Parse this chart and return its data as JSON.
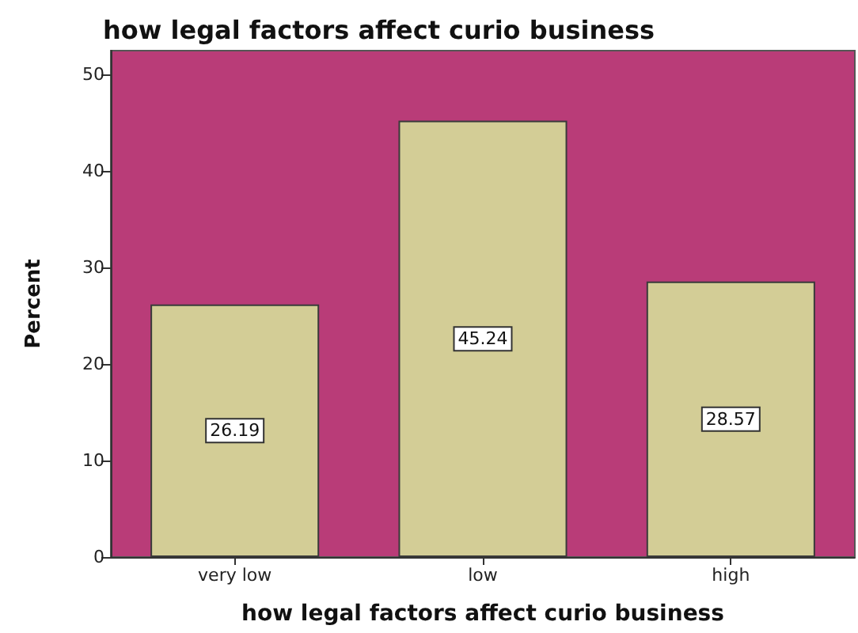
{
  "chart_data": {
    "type": "bar",
    "title": "how legal factors affect curio business",
    "xlabel": "how legal factors affect curio business",
    "ylabel": "Percent",
    "categories": [
      "very low",
      "low",
      "high"
    ],
    "values": [
      26.19,
      45.24,
      28.57
    ],
    "color": "#d3cd96",
    "ylim": [
      0,
      52.5
    ],
    "yticks": [
      0,
      10,
      20,
      30,
      40,
      50
    ],
    "data_labels": true
  }
}
